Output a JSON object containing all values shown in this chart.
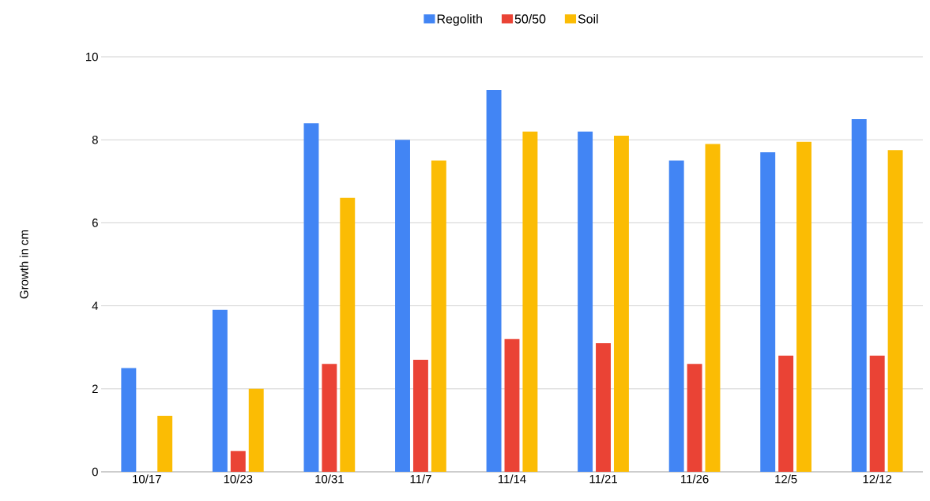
{
  "chart_data": {
    "type": "bar",
    "ylabel": "Growth in cm",
    "categories": [
      "10/17",
      "10/23",
      "10/31",
      "11/7",
      "11/14",
      "11/21",
      "11/26",
      "12/5",
      "12/12"
    ],
    "series": [
      {
        "name": "Regolith",
        "color": "#4285f4",
        "values": [
          2.5,
          3.9,
          8.4,
          8.0,
          9.2,
          8.2,
          7.5,
          7.7,
          8.5
        ]
      },
      {
        "name": "50/50",
        "color": "#ea4335",
        "values": [
          null,
          0.5,
          2.6,
          2.7,
          3.2,
          3.1,
          2.6,
          2.8,
          2.8
        ]
      },
      {
        "name": "Soil",
        "color": "#fbbc04",
        "values": [
          1.35,
          2.0,
          6.6,
          7.5,
          8.2,
          8.1,
          7.9,
          7.95,
          7.75
        ]
      }
    ],
    "ylim": [
      0,
      10
    ],
    "yticks": [
      0,
      2,
      4,
      6,
      8,
      10
    ],
    "grid": "y",
    "legend": "top"
  }
}
